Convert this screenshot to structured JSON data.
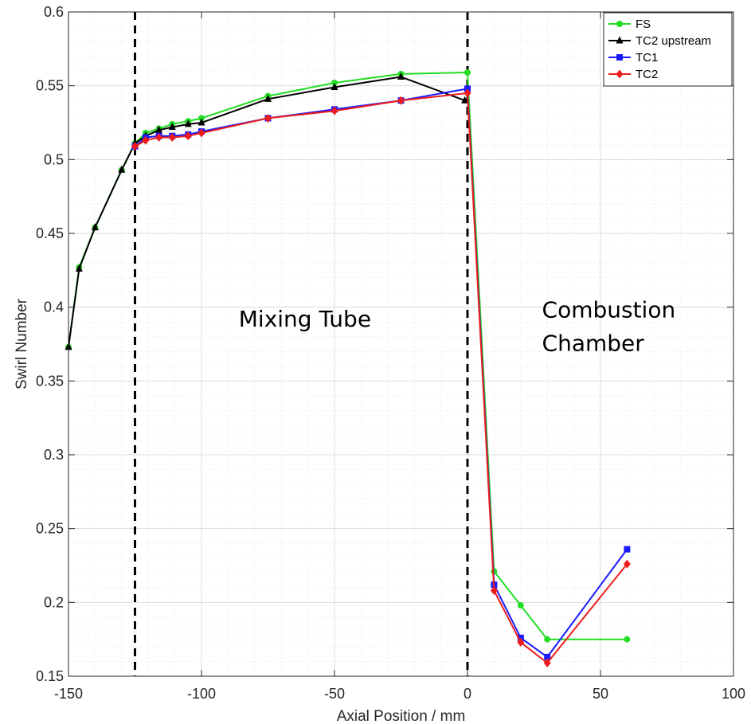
{
  "chart_data": {
    "type": "line",
    "title": "",
    "xlabel": "Axial Position / mm",
    "ylabel": "Swirl Number",
    "xlim": [
      -150,
      100
    ],
    "ylim": [
      0.15,
      0.6
    ],
    "xticks": [
      -150,
      -100,
      -50,
      0,
      50,
      100
    ],
    "xtick_labels": [
      "-150",
      "-100",
      "-50",
      "0",
      "50",
      "100"
    ],
    "yticks": [
      0.15,
      0.2,
      0.25,
      0.3,
      0.35,
      0.4,
      0.45,
      0.5,
      0.55,
      0.6
    ],
    "ytick_labels": [
      "0.15",
      "0.2",
      "0.25",
      "0.3",
      "0.35",
      "0.4",
      "0.45",
      "0.5",
      "0.55",
      "0.6"
    ],
    "grid": true,
    "legend_position": "top-right",
    "series": [
      {
        "name": "FS",
        "color": "#22dd22",
        "marker": "circle",
        "x": [
          -150,
          -146,
          -140,
          -130,
          -125,
          -121,
          -116,
          -111,
          -105,
          -100,
          -75,
          -50,
          -25,
          0,
          10,
          20,
          30,
          60
        ],
        "y": [
          0.373,
          0.427,
          0.454,
          0.493,
          0.511,
          0.518,
          0.521,
          0.524,
          0.526,
          0.528,
          0.543,
          0.552,
          0.558,
          0.559,
          0.221,
          0.198,
          0.175,
          0.175
        ]
      },
      {
        "name": "TC2 upstream",
        "color": "#000000",
        "marker": "triangle",
        "x": [
          -150,
          -146,
          -140,
          -130,
          -125,
          -121,
          -116,
          -111,
          -105,
          -100,
          -75,
          -50,
          -25,
          -1
        ],
        "y": [
          0.373,
          0.426,
          0.454,
          0.493,
          0.511,
          0.516,
          0.52,
          0.522,
          0.524,
          0.525,
          0.541,
          0.549,
          0.556,
          0.54
        ]
      },
      {
        "name": "TC1",
        "color": "#1a1aff",
        "marker": "square",
        "x": [
          -125,
          -121,
          -116,
          -111,
          -105,
          -100,
          -75,
          -50,
          -25,
          0,
          10,
          20,
          30,
          60
        ],
        "y": [
          0.509,
          0.515,
          0.516,
          0.516,
          0.517,
          0.519,
          0.528,
          0.534,
          0.54,
          0.548,
          0.212,
          0.176,
          0.163,
          0.236
        ]
      },
      {
        "name": "TC2",
        "color": "#ee1c1c",
        "marker": "diamond",
        "x": [
          -125,
          -121,
          -116,
          -111,
          -105,
          -100,
          -75,
          -50,
          -25,
          0,
          10,
          20,
          30,
          60
        ],
        "y": [
          0.509,
          0.513,
          0.515,
          0.515,
          0.516,
          0.518,
          0.528,
          0.533,
          0.54,
          0.545,
          0.208,
          0.173,
          0.159,
          0.226
        ]
      }
    ],
    "vlines": [
      {
        "x": -125,
        "style": "dashed",
        "color": "#000000"
      },
      {
        "x": 0,
        "style": "dashed",
        "color": "#000000"
      }
    ],
    "annotations": [
      {
        "lines": [
          "Mixing Tube"
        ],
        "x": -86,
        "y": 0.387
      },
      {
        "lines": [
          "Combustion",
          "Chamber"
        ],
        "x": 28,
        "y": 0.393
      }
    ]
  }
}
